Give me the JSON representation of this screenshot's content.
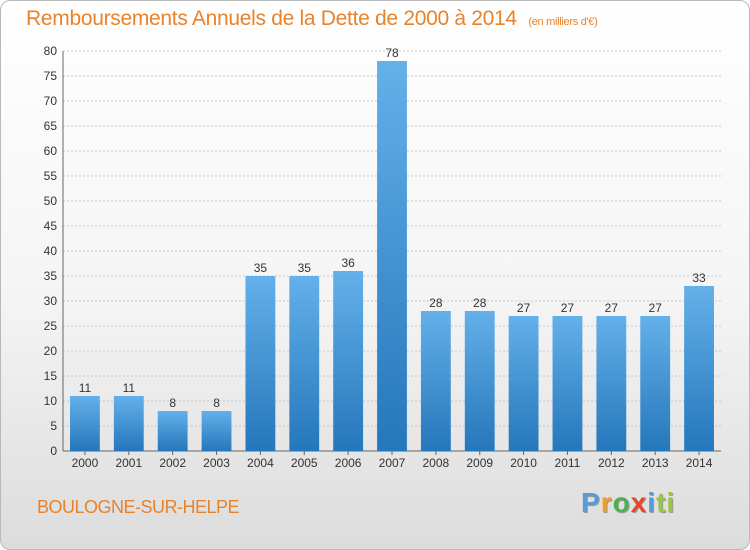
{
  "chart_data": {
    "type": "bar",
    "title": "Remboursements Annuels de la Dette de 2000 à 2014",
    "subtitle": "(en milliers d'€)",
    "xlabel": "",
    "ylabel": "",
    "categories": [
      "2000",
      "2001",
      "2002",
      "2003",
      "2004",
      "2005",
      "2006",
      "2007",
      "2008",
      "2009",
      "2010",
      "2011",
      "2012",
      "2013",
      "2014"
    ],
    "values": [
      11,
      11,
      8,
      8,
      35,
      35,
      36,
      78,
      28,
      28,
      27,
      27,
      27,
      27,
      33
    ],
    "ylim": [
      0,
      80
    ],
    "yticks": [
      0,
      5,
      10,
      15,
      20,
      25,
      30,
      35,
      40,
      45,
      50,
      55,
      60,
      65,
      70,
      75,
      80
    ],
    "grid": true,
    "data_labels": true
  },
  "footer": {
    "commune": "BOULOGNE-SUR-HELPE",
    "logo": [
      "P",
      "r",
      "o",
      "x",
      "i",
      "ti"
    ]
  },
  "colors": {
    "title": "#e8822b",
    "bar_top": "#63b0ea",
    "bar_bottom": "#2577bb",
    "grid": "#c8c8c8"
  },
  "logo_name": "proxiti-logo"
}
